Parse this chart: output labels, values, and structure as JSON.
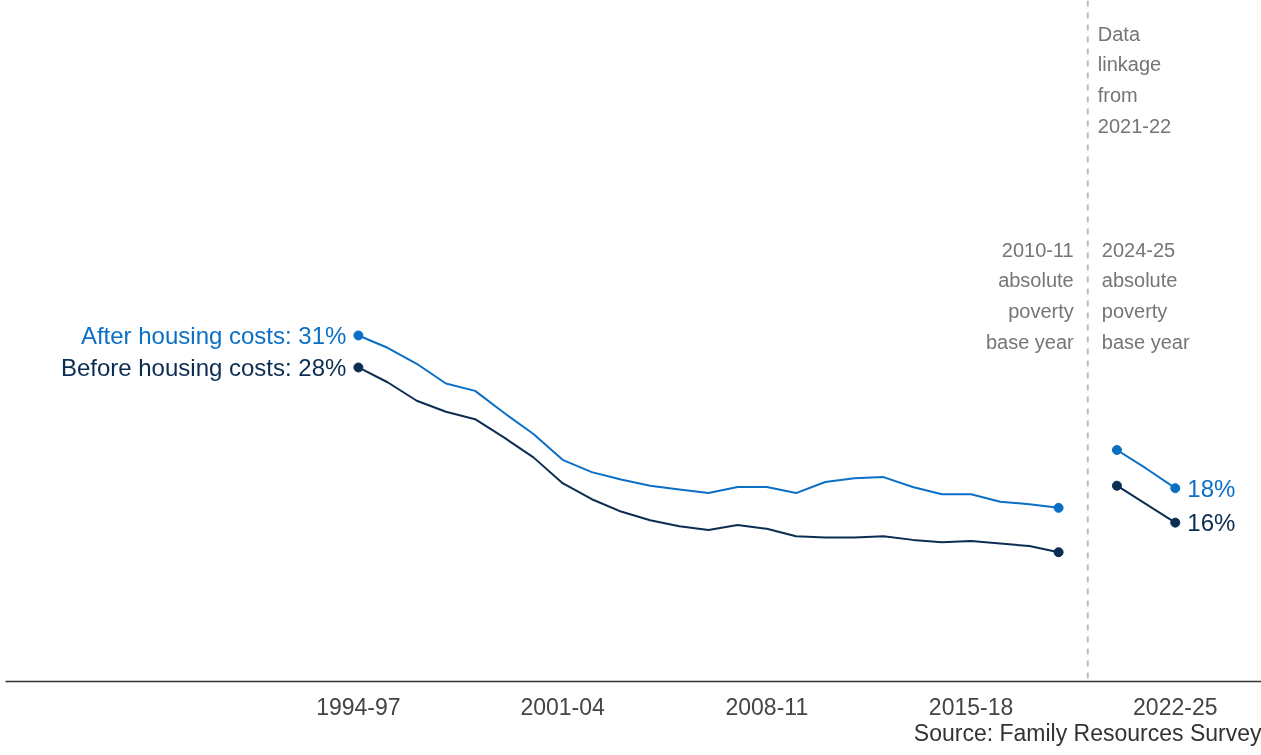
{
  "chart_data": {
    "type": "line",
    "categories": [
      "1994-97",
      null,
      null,
      null,
      null,
      null,
      null,
      "2001-04",
      null,
      null,
      null,
      null,
      null,
      null,
      "2008-11",
      null,
      null,
      null,
      null,
      null,
      null,
      "2015-18",
      null,
      null,
      null,
      null,
      null,
      null,
      "2022-25"
    ],
    "series": [
      {
        "color": "#0b6fc6",
        "values": [
          30.8,
          29.8,
          28.5,
          26.9,
          26.3,
          24.5,
          22.8,
          20.7,
          19.7,
          19.1,
          18.6,
          18.3,
          18.0,
          18.5,
          18.5,
          18.0,
          18.9,
          19.2,
          19.3,
          18.5,
          17.9,
          17.9,
          17.3,
          17.1,
          16.8,
          null,
          21.5,
          20.0,
          18.4
        ],
        "value_labels": [
          "After housing costs: 31%",
          null,
          null,
          null,
          null,
          null,
          null,
          null,
          null,
          null,
          null,
          null,
          null,
          null,
          null,
          null,
          null,
          null,
          null,
          null,
          null,
          null,
          null,
          null,
          null,
          null,
          null,
          null,
          "18%"
        ]
      },
      {
        "color": "#0b2d52",
        "values": [
          28.2,
          27.0,
          25.5,
          24.6,
          24.0,
          22.5,
          20.9,
          18.8,
          17.5,
          16.5,
          15.8,
          15.3,
          15.0,
          15.4,
          15.1,
          14.5,
          14.4,
          14.4,
          14.5,
          14.2,
          14.0,
          14.1,
          13.9,
          13.7,
          13.2,
          null,
          18.6,
          17.1,
          15.6
        ],
        "value_labels": [
          "Before housing costs: 28%",
          null,
          null,
          null,
          null,
          null,
          null,
          null,
          null,
          null,
          null,
          null,
          null,
          null,
          null,
          null,
          null,
          null,
          null,
          null,
          null,
          null,
          null,
          null,
          null,
          null,
          null,
          null,
          "16%"
        ]
      }
    ],
    "ylim": [
      2.7,
      58.0
    ],
    "tick_labels": "x",
    "line_style": "solid",
    "annotations": [
      "Data linkage from 2021-22",
      "2010-11 absolute poverty base year",
      "2024-25 absolute poverty base year",
      "Source: Family Resources Survey"
    ]
  }
}
